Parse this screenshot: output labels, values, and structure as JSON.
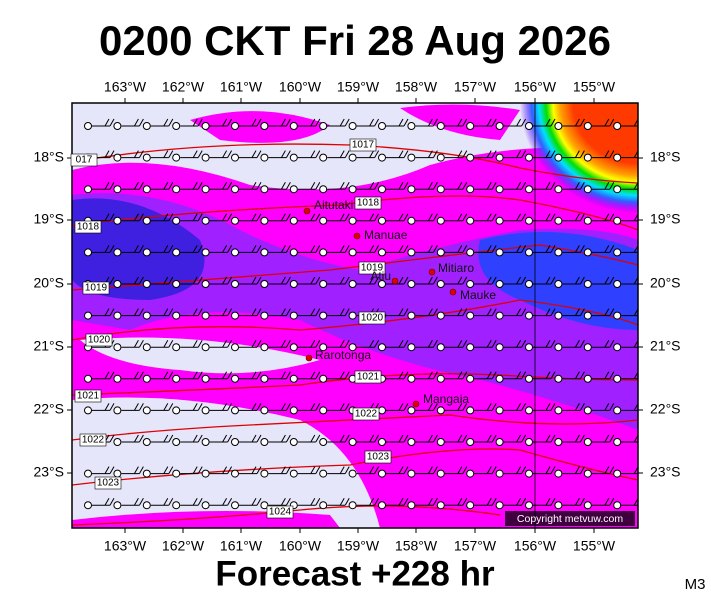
{
  "title": "0200 CKT Fri 28 Aug 2026",
  "lon_labels": [
    "163°W",
    "162°W",
    "161°W",
    "160°W",
    "159°W",
    "158°W",
    "157°W",
    "156°W",
    "155°W"
  ],
  "lat_labels": [
    "18°S",
    "19°S",
    "20°S",
    "21°S",
    "22°S",
    "23°S"
  ],
  "places": [
    {
      "label": "Aitutaki"
    },
    {
      "label": "Manuae"
    },
    {
      "label": "Atiu"
    },
    {
      "label": "Mitiaro"
    },
    {
      "label": "Mauke"
    },
    {
      "label": "Rarotonga"
    },
    {
      "label": "Mangaia"
    }
  ],
  "isobar_labels": [
    "1017",
    "017",
    "1018",
    "1018",
    "1019",
    "1019",
    "1020",
    "1020",
    "1021",
    "1021",
    "1022",
    "1022",
    "1023",
    "1023",
    "1024"
  ],
  "copyright": "Copyright metvuw.com",
  "footer": "Forecast +228 hr",
  "corner": "M3"
}
